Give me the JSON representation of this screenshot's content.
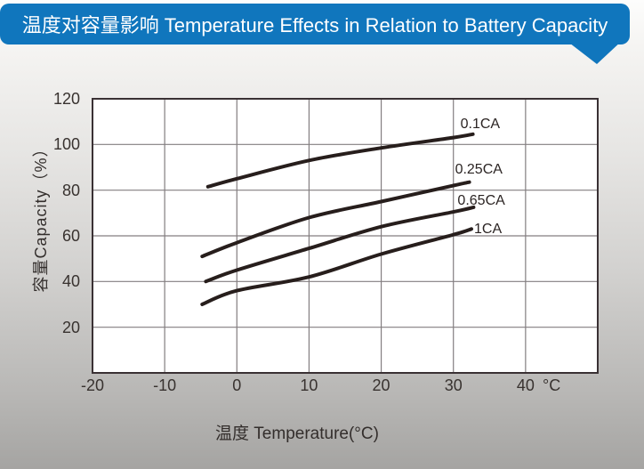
{
  "header": {
    "bg_color": "#1076bd",
    "text_color": "#ffffff"
  },
  "chart_data": {
    "type": "line",
    "title": "温度对容量影响 Temperature Effects in Relation to Battery Capacity",
    "xlabel": "温度  Temperature(°C)",
    "ylabel": "容量Capacity（%）",
    "x_unit": "°C",
    "xlim": [
      -20,
      50
    ],
    "ylim": [
      0,
      120
    ],
    "x_ticks": [
      -20,
      -10,
      0,
      10,
      20,
      30,
      40
    ],
    "y_ticks": [
      120,
      100,
      80,
      60,
      40,
      20
    ],
    "grid": true,
    "legend_position": "inline-right-of-curves",
    "line_color": "#271e1c",
    "grid_color": "#837e80",
    "border_color": "#3a3134",
    "text_color": "#38322f",
    "plot_bg": "#ffffff",
    "series": [
      {
        "name": "0.1CA",
        "points": [
          [
            -4,
            81.5
          ],
          [
            0,
            85
          ],
          [
            10,
            93
          ],
          [
            20,
            98.5
          ],
          [
            30,
            103
          ],
          [
            32.7,
            104.5
          ]
        ]
      },
      {
        "name": "0.25CA",
        "points": [
          [
            -4.8,
            51
          ],
          [
            0,
            57
          ],
          [
            10,
            68
          ],
          [
            20,
            75
          ],
          [
            30,
            82
          ],
          [
            32.2,
            83.5
          ]
        ]
      },
      {
        "name": "0.65CA",
        "points": [
          [
            -4.3,
            40
          ],
          [
            0,
            45
          ],
          [
            10,
            54.5
          ],
          [
            20,
            64
          ],
          [
            30,
            70.5
          ],
          [
            32.8,
            72.5
          ]
        ]
      },
      {
        "name": "1CA",
        "points": [
          [
            -4.8,
            30
          ],
          [
            0,
            36
          ],
          [
            10,
            42
          ],
          [
            20,
            52
          ],
          [
            30,
            60.5
          ],
          [
            32.5,
            63
          ]
        ]
      }
    ]
  }
}
